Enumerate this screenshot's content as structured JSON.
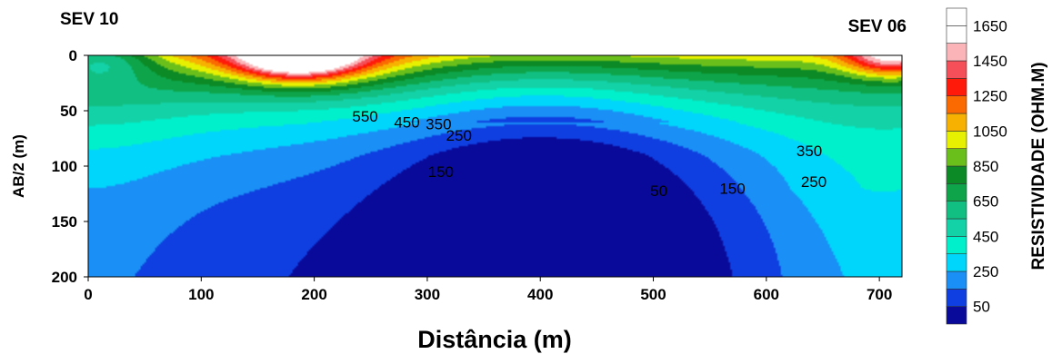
{
  "chart_data": {
    "type": "heatmap",
    "subtype": "filled-contour",
    "xlabel": "Distância (m)",
    "ylabel": "AB/2 (m)",
    "xlim": [
      0,
      720
    ],
    "ylim": [
      0,
      200
    ],
    "y_inverted": true,
    "x_ticks": [
      0,
      100,
      200,
      300,
      400,
      500,
      600,
      700
    ],
    "y_ticks": [
      0,
      50,
      100,
      150,
      200
    ],
    "annotations": [
      {
        "text": "SEV 10",
        "x": 0
      },
      {
        "text": "SEV 06",
        "x": 720
      }
    ],
    "colorbar": {
      "label": "RESISTIVIDADE (OHM.M)",
      "levels": [
        0,
        50,
        150,
        250,
        350,
        450,
        550,
        650,
        750,
        850,
        950,
        1050,
        1150,
        1250,
        1350,
        1450,
        1550,
        1650,
        1750
      ],
      "colors": [
        "#0a0a9a",
        "#0f3fe0",
        "#1a8ff5",
        "#00d5fb",
        "#00f0cc",
        "#14d2a8",
        "#12bf82",
        "#0ea54a",
        "#0b8a26",
        "#6bbf1b",
        "#e6f000",
        "#f7b100",
        "#fa6a00",
        "#ff1a0a",
        "#f5505a",
        "#fbb5b8",
        "#ffffff",
        "#ffffff"
      ],
      "tick_labels": [
        "50",
        "250",
        "450",
        "650",
        "850",
        "1050",
        "1250",
        "1450",
        "1650"
      ],
      "tick_values": [
        50,
        250,
        450,
        650,
        850,
        1050,
        1250,
        1450,
        1650
      ]
    },
    "contour_labels": [
      {
        "text": "550",
        "x": 245,
        "y": 60
      },
      {
        "text": "450",
        "x": 282,
        "y": 65
      },
      {
        "text": "350",
        "x": 310,
        "y": 67
      },
      {
        "text": "250",
        "x": 328,
        "y": 77
      },
      {
        "text": "150",
        "x": 312,
        "y": 110
      },
      {
        "text": "50",
        "x": 505,
        "y": 127
      },
      {
        "text": "150",
        "x": 570,
        "y": 125
      },
      {
        "text": "350",
        "x": 638,
        "y": 91
      },
      {
        "text": "250",
        "x": 642,
        "y": 119
      }
    ]
  }
}
